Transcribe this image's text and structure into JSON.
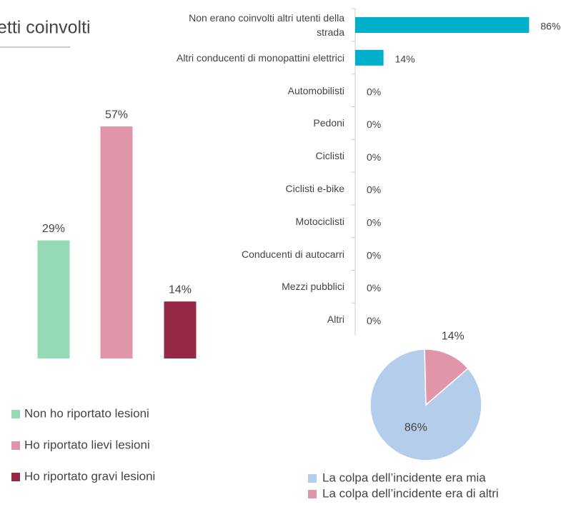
{
  "chart_data": [
    {
      "type": "bar",
      "orientation": "vertical",
      "categories": [
        "Non ho riportato lesioni",
        "Ho riportato lievi lesioni",
        "Ho riportato gravi lesioni"
      ],
      "values": [
        29,
        57,
        14
      ],
      "value_labels": [
        "29%",
        "57%",
        "14%"
      ],
      "colors": [
        "#96dab5",
        "#e096a8",
        "#952845"
      ],
      "legend": "bottom"
    },
    {
      "type": "hbar",
      "title": "etti coinvolti",
      "categories": [
        "Non erano coinvolti altri utenti della strada",
        "Altri conducenti di monopattini elettrici",
        "Automobilisti",
        "Pedoni",
        "Ciclisti",
        "Ciclisti e-bike",
        "Motociclisti",
        "Conducenti di autocarri",
        "Mezzi pubblici",
        "Altri"
      ],
      "values": [
        86,
        14,
        0,
        0,
        0,
        0,
        0,
        0,
        0,
        0
      ],
      "value_labels": [
        "86%",
        "14%",
        "0%",
        "0%",
        "0%",
        "0%",
        "0%",
        "0%",
        "0%",
        "0%"
      ],
      "color": "#00afc9"
    },
    {
      "type": "pie",
      "categories": [
        "La colpa dell’incidente era mia",
        "La colpa dell’incidente era di altri"
      ],
      "values": [
        86,
        14
      ],
      "value_labels": [
        "86%",
        "14%"
      ],
      "colors": [
        "#b4cdea",
        "#e096a8"
      ],
      "legend": "bottom"
    }
  ]
}
